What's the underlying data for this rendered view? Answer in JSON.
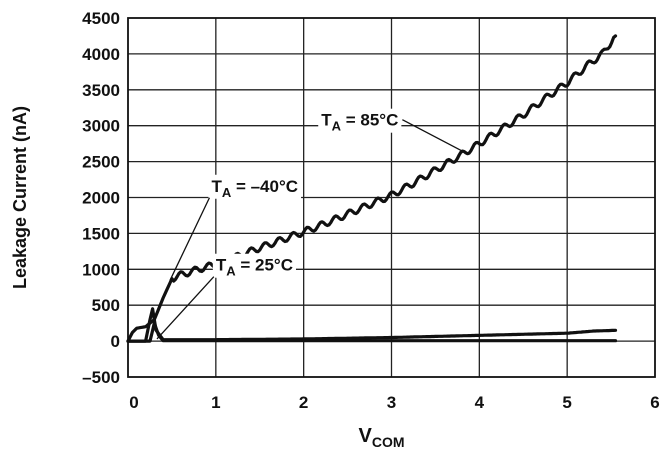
{
  "chart_data": {
    "type": "line",
    "title": "",
    "xlabel": {
      "main": "V",
      "sub": "COM"
    },
    "ylabel": "Leakage Current (nA)",
    "xlim": [
      0,
      6
    ],
    "ylim": [
      -500,
      4500
    ],
    "x_ticks": [
      0,
      1,
      2,
      3,
      4,
      5,
      6
    ],
    "y_ticks": [
      -500,
      0,
      500,
      1000,
      1500,
      2000,
      2500,
      3000,
      3500,
      4000,
      4500
    ],
    "x_tick_labels": [
      "0",
      "1",
      "2",
      "3",
      "4",
      "5",
      "6"
    ],
    "y_tick_labels": [
      "–500",
      "0",
      "500",
      "1000",
      "1500",
      "2000",
      "2500",
      "3000",
      "3500",
      "4000",
      "4500"
    ],
    "grid": true,
    "series": [
      {
        "name": "TA = 85°C",
        "x": [
          0,
          0.05,
          0.1,
          0.2,
          0.3,
          0.4,
          0.5,
          0.6,
          0.8,
          1.0,
          1.25,
          1.5,
          1.75,
          2.0,
          2.25,
          2.5,
          2.75,
          3.0,
          3.25,
          3.5,
          3.75,
          4.0,
          4.25,
          4.5,
          4.75,
          5.0,
          5.25,
          5.4,
          5.55
        ],
        "y": [
          0,
          120,
          180,
          200,
          300,
          600,
          870,
          920,
          1000,
          1070,
          1180,
          1300,
          1410,
          1520,
          1640,
          1770,
          1900,
          2030,
          2200,
          2380,
          2560,
          2750,
          2950,
          3150,
          3380,
          3600,
          3860,
          4000,
          4250
        ]
      },
      {
        "name": "TA = 25°C",
        "x": [
          0,
          0.2,
          0.25,
          0.28,
          0.32,
          0.4,
          1,
          2,
          3,
          4,
          5,
          5.3,
          5.55
        ],
        "y": [
          0,
          0,
          300,
          450,
          150,
          20,
          20,
          30,
          50,
          80,
          110,
          140,
          150
        ]
      },
      {
        "name": "TA = –40°C",
        "x": [
          0,
          0.25,
          0.3,
          0.35,
          0.4,
          1,
          2,
          3,
          4,
          5,
          5.55
        ],
        "y": [
          0,
          0,
          250,
          80,
          5,
          5,
          5,
          5,
          5,
          5,
          5
        ]
      }
    ],
    "annotations": [
      {
        "label": {
          "main": "T",
          "sub": "A",
          "rest": " = 85°C"
        },
        "text_at": [
          2.2,
          3000
        ],
        "points_to": [
          3.8,
          2650
        ]
      },
      {
        "label": {
          "main": "T",
          "sub": "A",
          "rest": " = –40°C"
        },
        "text_at": [
          0.95,
          2080
        ],
        "points_to": [
          0.48,
          850
        ]
      },
      {
        "label": {
          "main": "T",
          "sub": "A",
          "rest": " = 25°C"
        },
        "text_at": [
          1.0,
          980
        ],
        "points_to": [
          0.33,
          30
        ]
      }
    ]
  }
}
